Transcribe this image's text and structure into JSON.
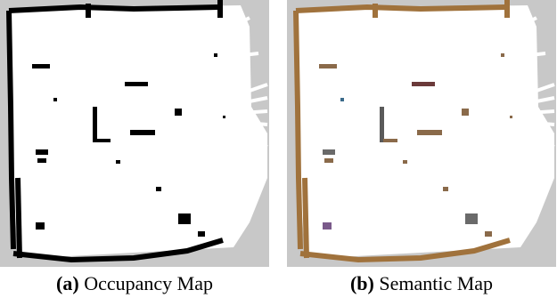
{
  "panels": [
    {
      "label": "(a)",
      "caption": "Occupancy Map"
    },
    {
      "label": "(b)",
      "caption": "Semantic Map"
    }
  ],
  "colors": {
    "background": "#c8c8c8",
    "free_space": "#ffffff",
    "occupied_occupancy": "#000000",
    "occupied_semantic": "#a0723c"
  }
}
